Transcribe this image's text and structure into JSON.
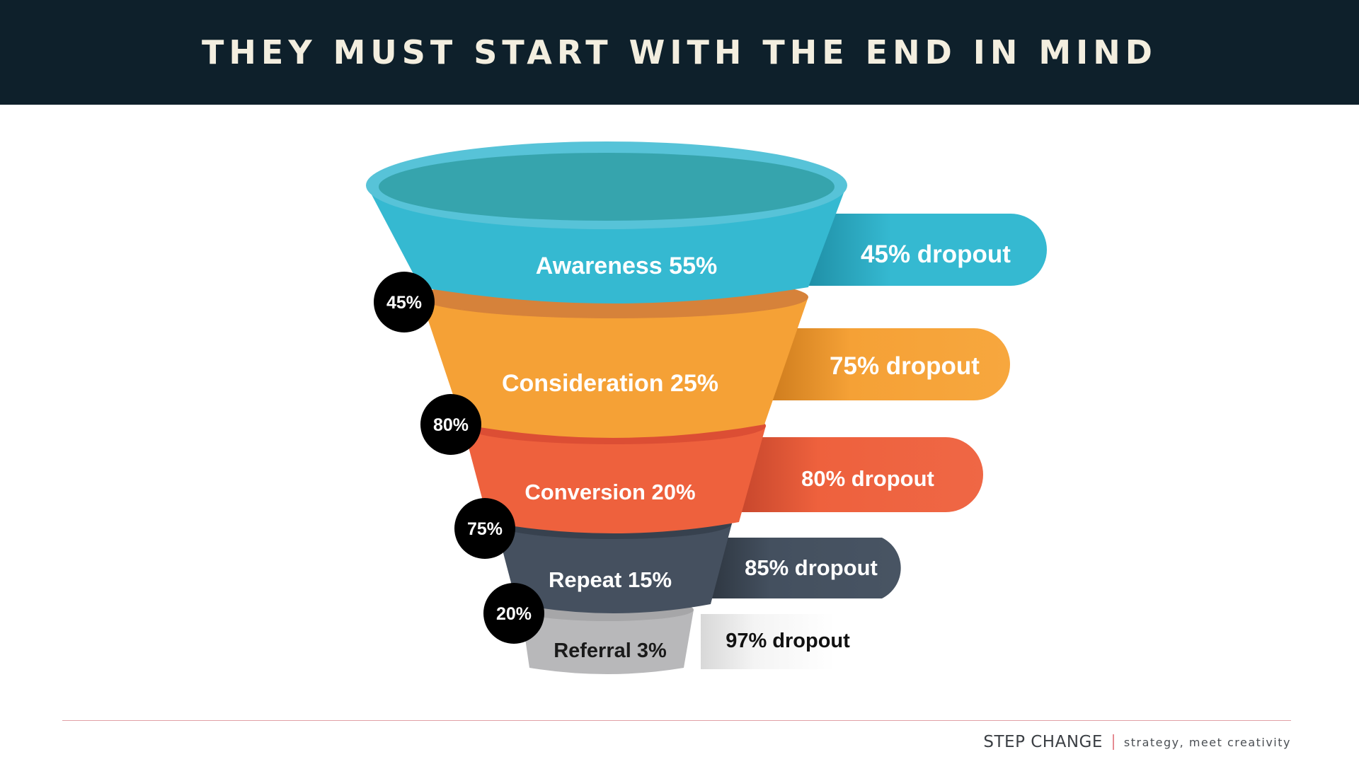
{
  "header": {
    "title": "THEY MUST START WITH THE END IN MIND"
  },
  "funnel": {
    "stages": [
      {
        "label": "Awareness 55%",
        "value": 55,
        "dropout_label": "45% dropout",
        "dropout": 45,
        "color": "#35b9d1"
      },
      {
        "label": "Consideration 25%",
        "value": 25,
        "dropout_label": "75% dropout",
        "dropout": 75,
        "color": "#f5a136"
      },
      {
        "label": "Conversion 20%",
        "value": 20,
        "dropout_label": "80% dropout",
        "dropout": 80,
        "color": "#ee613d"
      },
      {
        "label": "Repeat 15%",
        "value": 15,
        "dropout_label": "85% dropout",
        "dropout": 85,
        "color": "#44505f"
      },
      {
        "label": "Referral 3%",
        "value": 3,
        "dropout_label": "97% dropout",
        "dropout": 97,
        "color": "#bdbdbe"
      }
    ],
    "badges": [
      "45%",
      "80%",
      "75%",
      "20%"
    ]
  },
  "footer": {
    "brand": "STEP CHANGE",
    "tagline": "strategy, meet creativity",
    "accent": "#e58b93"
  }
}
